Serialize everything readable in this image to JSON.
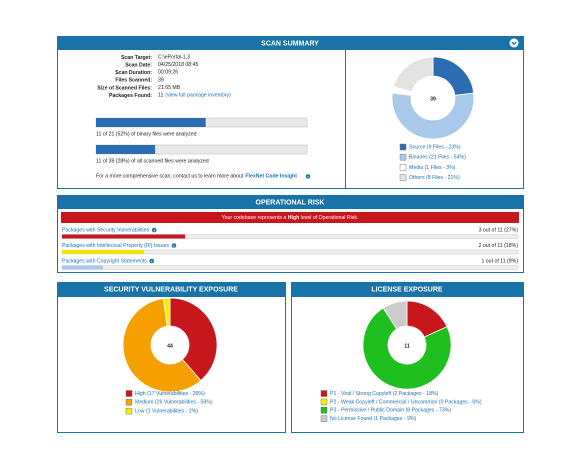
{
  "scan_summary": {
    "title": "SCAN SUMMARY",
    "fields": [
      {
        "label": "Scan Target:",
        "value": "C:\\ePortal-1.3"
      },
      {
        "label": "Scan Date:",
        "value": "04/25/2018 08:45"
      },
      {
        "label": "Scan Duration:",
        "value": "00:09:26"
      },
      {
        "label": "Files Scanned:",
        "value": "39"
      },
      {
        "label": "Size of Scanned Files:",
        "value": "21.65 MB"
      },
      {
        "label": "Packages Found:",
        "value": "11"
      }
    ],
    "packages_link": "(view full package inventory)",
    "progress": [
      {
        "percent": 52,
        "text": "11 of 21 (52%) of binary files were analyzed"
      },
      {
        "percent": 28,
        "text": "11 of 39 (28%) of all scanned files were analyzed"
      }
    ],
    "note": "For a more comprehensive scan, contact us to learn more about",
    "note_link": "FlexNet Code Insight",
    "chart": {
      "type": "donut",
      "total": 39,
      "series": [
        {
          "name": "Source (9 Files - 23%)",
          "value": 9,
          "color": "#2c6cb2"
        },
        {
          "name": "Binaries (21 Files - 54%)",
          "value": 21,
          "color": "#a9c9ea"
        },
        {
          "name": "Media (1 Files - 3%)",
          "value": 1,
          "color": "#ffffff"
        },
        {
          "name": "Others (8 Files - 21%)",
          "value": 8,
          "color": "#e3e3e3"
        }
      ]
    }
  },
  "operational_risk": {
    "title": "OPERATIONAL RISK",
    "banner": [
      "Your codebase represents a ",
      "High",
      " level of Operational Risk."
    ],
    "rows": [
      {
        "label": "Packages with Security Vulnerabilities",
        "count": "3 out of 11 (27%)",
        "percent": 27,
        "color": "#c8161d"
      },
      {
        "label": "Packages with Intellectual Property (IP) Issues",
        "count": "2 out of 11 (18%)",
        "percent": 18,
        "color": "#f2e600"
      },
      {
        "label": "Packages with Copyright Statements",
        "count": "1 out of 11 (9%)",
        "percent": 9,
        "color": "#a9c9ea"
      }
    ]
  },
  "security": {
    "title": "SECURITY VULNERABILITY EXPOSURE",
    "chart": {
      "type": "donut",
      "total": 44,
      "series": [
        {
          "name": "High (17 Vulnerabilities - 39%)",
          "value": 17,
          "color": "#c8161d"
        },
        {
          "name": "Medium (26 Vulnerabilities - 59%)",
          "value": 26,
          "color": "#f5a000"
        },
        {
          "name": "Low (1 Vulnerabilities - 2%)",
          "value": 1,
          "color": "#f7ef00"
        }
      ]
    }
  },
  "license": {
    "title": "LICENSE EXPOSURE",
    "chart": {
      "type": "donut",
      "total": 11,
      "series": [
        {
          "name": "P1 - Viral / Strong Copyleft (2 Packages - 18%)",
          "value": 2,
          "color": "#c8161d"
        },
        {
          "name": "P2 - Weak Copyleft / Commercial / Uncommon (0 Packages - 0%)",
          "value": 0,
          "color": "#f7ef00"
        },
        {
          "name": "P3 - Permissive / Public Domain (8 Packages - 73%)",
          "value": 8,
          "color": "#1fbf1f"
        },
        {
          "name": "No License Found (1 Packages - 9%)",
          "value": 1,
          "color": "#cccccc"
        }
      ]
    }
  }
}
